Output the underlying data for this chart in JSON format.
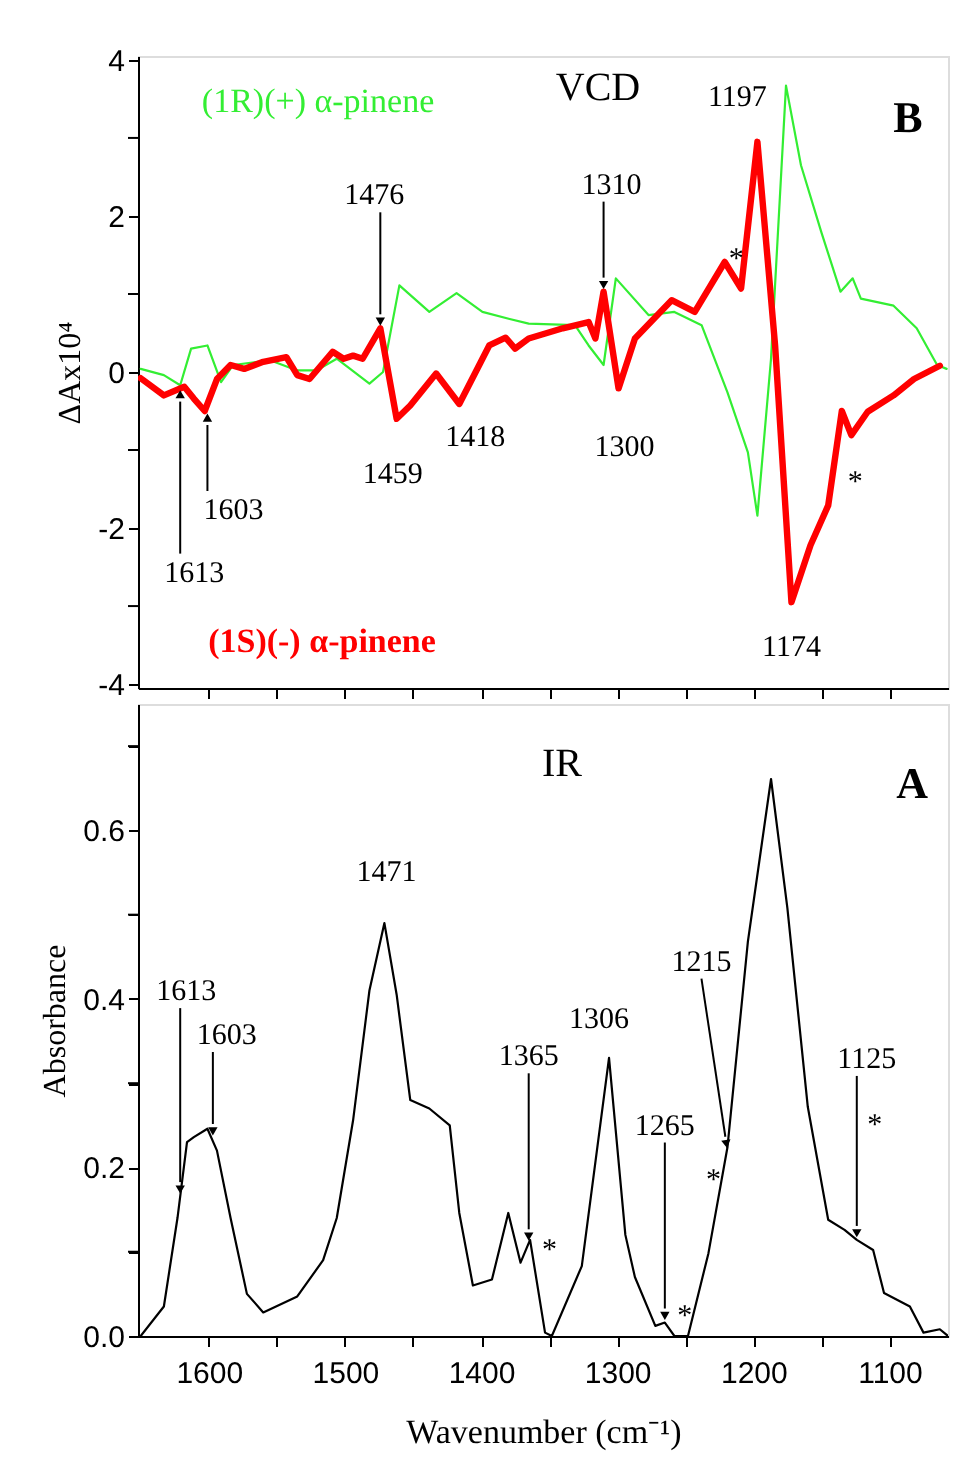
{
  "chart_data": [
    {
      "type": "line",
      "ylabel": "ΔAx10⁴",
      "xlim": [
        1652,
        1057
      ],
      "ylim": [
        -4.05,
        4.05
      ],
      "xticks": [
        1600,
        {
          "value": 1550,
          "label": null
        },
        1500,
        {
          "value": 1450,
          "label": null
        },
        1400,
        {
          "value": 1350,
          "label": null
        },
        1300,
        {
          "value": 1250,
          "label": null
        },
        1200,
        {
          "value": 1150,
          "label": null
        },
        1100
      ],
      "yticks": [
        -4,
        {
          "value": -3,
          "label": null
        },
        -2,
        {
          "value": -1,
          "label": null
        },
        0,
        {
          "value": 1,
          "label": null
        },
        2,
        {
          "value": 3,
          "label": null
        },
        4
      ],
      "tick_labels": "y",
      "series": [
        {
          "name": "(1R)(+) α-pinene",
          "color": "#33ee33",
          "x": [
            1650,
            1633,
            1621,
            1613,
            1601,
            1591,
            1582,
            1555,
            1535,
            1521,
            1506,
            1482,
            1472,
            1460,
            1438,
            1418,
            1399,
            1379,
            1365,
            1331,
            1321,
            1310,
            1301,
            1277,
            1258,
            1238,
            1219,
            1204,
            1197,
            1187,
            1176,
            1165,
            1150,
            1136,
            1127,
            1121,
            1097,
            1080,
            1065,
            1058
          ],
          "values": [
            0.04,
            -0.04,
            -0.17,
            0.3,
            0.34,
            -0.13,
            0.09,
            0.15,
            0.02,
            0.02,
            0.17,
            -0.15,
            0.0,
            1.11,
            0.77,
            1.01,
            0.77,
            0.68,
            0.62,
            0.6,
            0.34,
            0.09,
            1.2,
            0.73,
            0.77,
            0.6,
            -0.26,
            -1.03,
            -1.84,
            0.17,
            3.67,
            2.65,
            1.79,
            1.03,
            1.2,
            0.94,
            0.85,
            0.56,
            0.09,
            0.04
          ]
        },
        {
          "name": "(1S)(-) α-pinene",
          "color": "#ff0000",
          "x": [
            1650,
            1633,
            1618,
            1611,
            1603,
            1594,
            1584,
            1574,
            1560,
            1543,
            1535,
            1526,
            1509,
            1501,
            1494,
            1487,
            1474,
            1462,
            1452,
            1433,
            1416,
            1394,
            1382,
            1375,
            1365,
            1340,
            1321,
            1316,
            1310,
            1299,
            1287,
            1260,
            1243,
            1221,
            1209,
            1197,
            1184,
            1172,
            1158,
            1145,
            1135,
            1128,
            1116,
            1097,
            1082,
            1063
          ],
          "values": [
            -0.08,
            -0.3,
            -0.19,
            -0.34,
            -0.5,
            -0.09,
            0.09,
            0.04,
            0.13,
            0.19,
            -0.04,
            -0.09,
            0.26,
            0.17,
            0.21,
            0.17,
            0.56,
            -0.6,
            -0.43,
            -0.02,
            -0.41,
            0.34,
            0.44,
            0.3,
            0.43,
            0.56,
            0.64,
            0.43,
            1.03,
            -0.21,
            0.43,
            0.92,
            0.77,
            1.41,
            1.07,
            2.95,
            0.34,
            -2.95,
            -2.22,
            -1.71,
            -0.5,
            -0.81,
            -0.51,
            -0.3,
            -0.09,
            0.08
          ]
        }
      ],
      "annotations": [
        "VCD",
        "B",
        {
          "text": "1613",
          "x": 1621,
          "y": -0.2
        },
        {
          "text": "1603",
          "x": 1601,
          "y": -0.5
        },
        {
          "text": "1476",
          "x": 1474,
          "y": 0.56
        },
        {
          "text": "1459",
          "x": 1462,
          "y": -0.6
        },
        {
          "text": "1418",
          "x": 1416,
          "y": -0.41
        },
        {
          "text": "1310",
          "x": 1310,
          "y": 1.03
        },
        {
          "text": "1300",
          "x": 1299,
          "y": -0.21
        },
        {
          "text": "1197",
          "x": 1197,
          "y": 2.95
        },
        {
          "text": "1174",
          "x": 1172,
          "y": -2.95
        },
        {
          "text": "*",
          "x": 1217,
          "y": 1.41
        },
        {
          "text": "*",
          "x": 1128,
          "y": -0.81
        }
      ]
    },
    {
      "type": "line",
      "xlabel": "Wavenumber (cm⁻¹)",
      "ylabel": "Absorbance",
      "xlim": [
        1652,
        1057
      ],
      "ylim": [
        0,
        0.75
      ],
      "xticks": [
        1600,
        {
          "value": 1550,
          "label": null
        },
        1500,
        {
          "value": 1450,
          "label": null
        },
        1400,
        {
          "value": 1350,
          "label": null
        },
        1300,
        {
          "value": 1250,
          "label": null
        },
        1200,
        {
          "value": 1150,
          "label": null
        },
        1100
      ],
      "yticks": [
        {
          "value": 0,
          "label": "0.0"
        },
        {
          "value": 0.1,
          "label": null
        },
        0.2,
        {
          "value": 0.3,
          "label": null
        },
        0.4,
        {
          "value": 0.5,
          "label": null
        },
        0.6,
        {
          "value": 0.7,
          "label": null
        }
      ],
      "series": [
        {
          "color": "#000000",
          "x": [
            1650,
            1633,
            1623,
            1616,
            1611,
            1601,
            1594,
            1584,
            1572,
            1560,
            1535,
            1516,
            1506,
            1494,
            1482,
            1471,
            1462,
            1452,
            1438,
            1423,
            1416,
            1406,
            1392,
            1380,
            1371,
            1364,
            1353,
            1348,
            1326,
            1306,
            1294,
            1287,
            1272,
            1265,
            1258,
            1248,
            1233,
            1219,
            1204,
            1187,
            1175,
            1160,
            1145,
            1133,
            1124,
            1112,
            1104,
            1085,
            1075,
            1063,
            1057
          ],
          "values": [
            0.0,
            0.035,
            0.14,
            0.23,
            0.236,
            0.246,
            0.22,
            0.14,
            0.05,
            0.028,
            0.047,
            0.09,
            0.14,
            0.256,
            0.41,
            0.49,
            0.405,
            0.28,
            0.27,
            0.25,
            0.146,
            0.06,
            0.067,
            0.146,
            0.087,
            0.114,
            0.004,
            0.0,
            0.083,
            0.33,
            0.12,
            0.07,
            0.012,
            0.016,
            0.0,
            0.0,
            0.098,
            0.224,
            0.468,
            0.661,
            0.508,
            0.272,
            0.138,
            0.126,
            0.114,
            0.102,
            0.051,
            0.035,
            0.004,
            0.008,
            0.0
          ]
        }
      ],
      "annotations": [
        "IR",
        "A",
        {
          "text": "1613",
          "x": 1621,
          "y": 0.166
        },
        {
          "text": "1603",
          "x": 1597,
          "y": 0.235
        },
        {
          "text": "1471",
          "x": 1471,
          "y": 0.49
        },
        {
          "text": "1365",
          "x": 1365,
          "y": 0.11
        },
        {
          "text": "*",
          "x": 1363,
          "y": 0.11
        },
        {
          "text": "1306",
          "x": 1306,
          "y": 0.33
        },
        {
          "text": "1265",
          "x": 1265,
          "y": 0.016
        },
        {
          "text": "*",
          "x": 1265,
          "y": 0.016
        },
        {
          "text": "1215",
          "x": 1219,
          "y": 0.22
        },
        {
          "text": "*",
          "x": 1219,
          "y": 0.22
        },
        {
          "text": "1125",
          "x": 1124,
          "y": 0.114
        },
        {
          "text": "*",
          "x": 1124,
          "y": 0.114
        }
      ]
    }
  ]
}
